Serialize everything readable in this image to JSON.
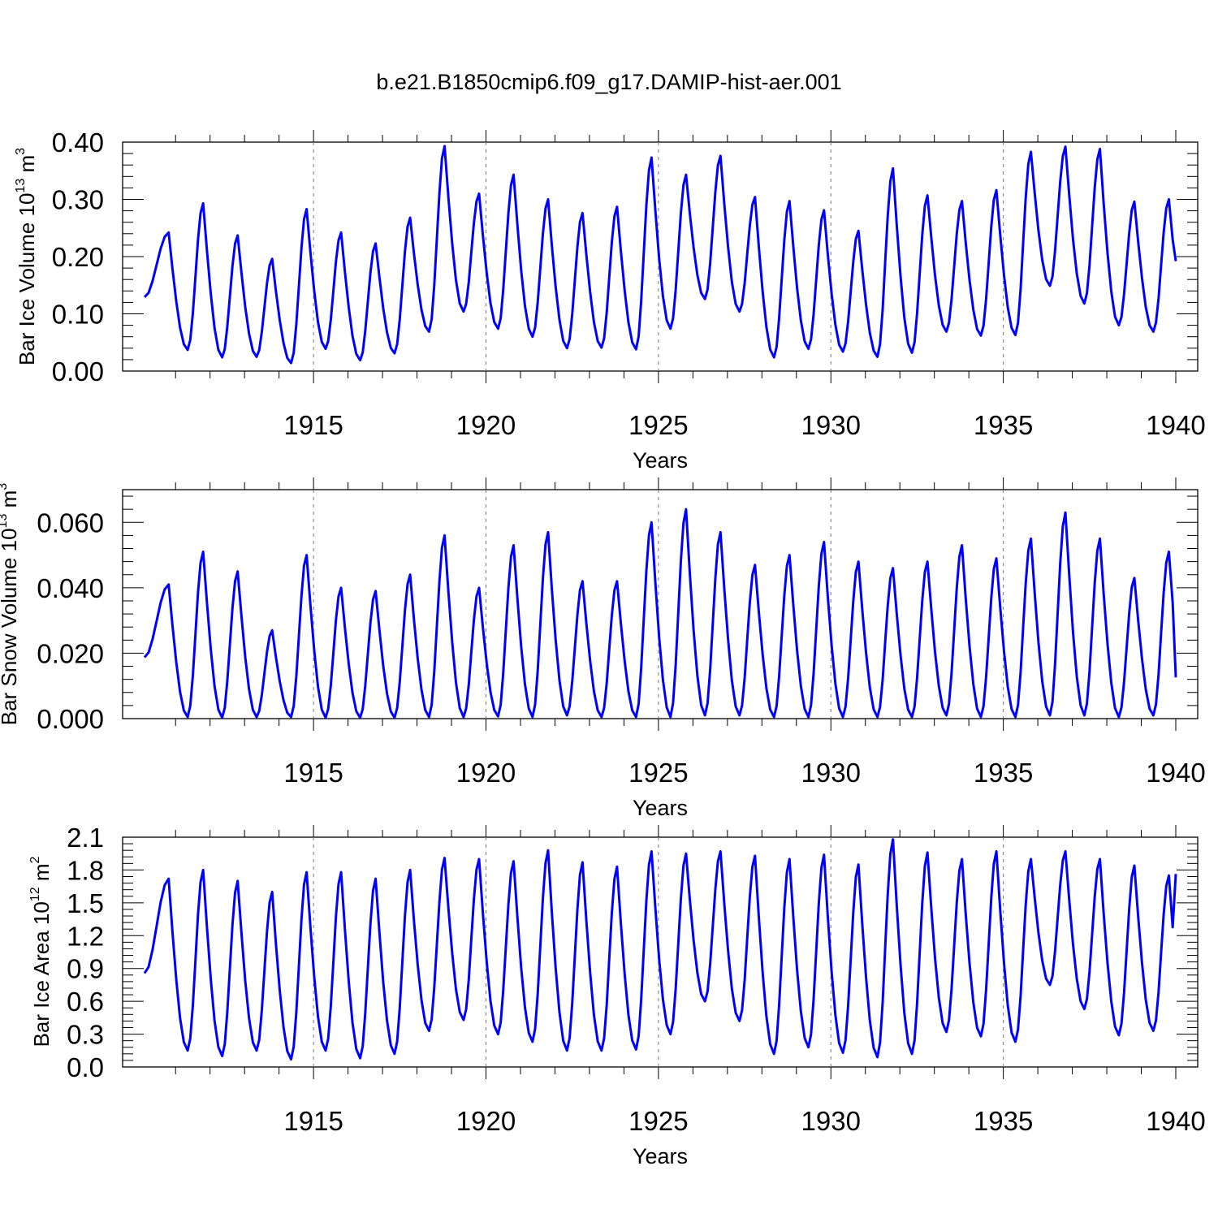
{
  "title": "b.e21.B1850cmip6.f09_g17.DAMIP-hist-aer.001",
  "chart_data": [
    {
      "type": "line",
      "ylabel_main": "Bar Ice Volume 10",
      "ylabel_exp": "13",
      "ylabel_unit": " m",
      "ylabel_unit_exp": "3",
      "xlabel": "Years",
      "xlim": [
        1910.1,
        1940
      ],
      "ylim": [
        0,
        0.4
      ],
      "yticks": [
        0,
        0.1,
        0.2,
        0.3,
        0.4
      ],
      "yticklabels": [
        "0.00",
        "0.10",
        "0.20",
        "0.30",
        "0.40"
      ],
      "xticks": [
        1915,
        1920,
        1925,
        1930,
        1935,
        1940
      ],
      "xticklabels": [
        "1915",
        "1920",
        "1925",
        "1930",
        "1935",
        "1940"
      ],
      "line_color": "#0000ff",
      "series_peaks": [
        0.242,
        0.293,
        0.237,
        0.196,
        0.283,
        0.242,
        0.223,
        0.268,
        0.393,
        0.31,
        0.343,
        0.3,
        0.276,
        0.287,
        0.373,
        0.343,
        0.376,
        0.304,
        0.297,
        0.281,
        0.245,
        0.354,
        0.307,
        0.297,
        0.316,
        0.383,
        0.392,
        0.388,
        0.296,
        0.3
      ],
      "series_troughs": [
        0.037,
        0.024,
        0.025,
        0.014,
        0.039,
        0.019,
        0.031,
        0.069,
        0.104,
        0.074,
        0.06,
        0.04,
        0.041,
        0.038,
        0.074,
        0.126,
        0.104,
        0.024,
        0.039,
        0.034,
        0.025,
        0.032,
        0.069,
        0.062,
        0.063,
        0.149,
        0.118,
        0.08,
        0.069
      ]
    },
    {
      "type": "line",
      "ylabel_main": "Bar Snow Volume 10",
      "ylabel_exp": "13",
      "ylabel_unit": " m",
      "ylabel_unit_exp": "3",
      "xlabel": "Years",
      "xlim": [
        1910.1,
        1940
      ],
      "ylim": [
        0,
        0.07
      ],
      "yticks": [
        0,
        0.02,
        0.04,
        0.06
      ],
      "yticklabels": [
        "0.000",
        "0.020",
        "0.040",
        "0.060"
      ],
      "xticks": [
        1915,
        1920,
        1925,
        1930,
        1935,
        1940
      ],
      "xticklabels": [
        "1915",
        "1920",
        "1925",
        "1930",
        "1935",
        "1940"
      ],
      "line_color": "#0000ff",
      "series_peaks": [
        0.041,
        0.051,
        0.045,
        0.027,
        0.05,
        0.04,
        0.039,
        0.044,
        0.056,
        0.04,
        0.053,
        0.057,
        0.042,
        0.042,
        0.06,
        0.064,
        0.057,
        0.047,
        0.05,
        0.054,
        0.048,
        0.046,
        0.048,
        0.053,
        0.049,
        0.055,
        0.063,
        0.055,
        0.043,
        0.051
      ],
      "series_troughs": [
        0.0005,
        0.0003,
        0.0005,
        0.0005,
        0.0003,
        0.0003,
        0.0003,
        0.0005,
        0.0005,
        0.0007,
        0.0005,
        0.001,
        0.0005,
        0.0005,
        0.0005,
        0.001,
        0.001,
        0.0005,
        0.0005,
        0.0005,
        0.0005,
        0.0005,
        0.001,
        0.0005,
        0.0005,
        0.001,
        0.001,
        0.0005,
        0.001
      ]
    },
    {
      "type": "line",
      "ylabel_main": "Bar Ice Area 10",
      "ylabel_exp": "12",
      "ylabel_unit": " m",
      "ylabel_unit_exp": "2",
      "xlabel": "Years",
      "xlim": [
        1910.1,
        1940
      ],
      "ylim": [
        0,
        2.1
      ],
      "yticks": [
        0,
        0.3,
        0.6,
        0.9,
        1.2,
        1.5,
        1.8,
        2.1
      ],
      "yticklabels": [
        "0.0",
        "0.3",
        "0.6",
        "0.9",
        "1.2",
        "1.5",
        "1.8",
        "2.1"
      ],
      "xticks": [
        1915,
        1920,
        1925,
        1930,
        1935,
        1940
      ],
      "xticklabels": [
        "1915",
        "1920",
        "1925",
        "1930",
        "1935",
        "1940"
      ],
      "line_color": "#0000ff",
      "series_peaks": [
        1.72,
        1.8,
        1.7,
        1.6,
        1.78,
        1.78,
        1.72,
        1.8,
        1.91,
        1.9,
        1.88,
        1.98,
        1.87,
        1.83,
        1.97,
        1.95,
        1.97,
        1.93,
        1.9,
        1.94,
        1.85,
        2.08,
        1.96,
        1.9,
        1.97,
        1.9,
        1.97,
        1.9,
        1.84,
        1.75
      ],
      "series_troughs": [
        0.15,
        0.1,
        0.15,
        0.07,
        0.15,
        0.08,
        0.12,
        0.33,
        0.43,
        0.3,
        0.23,
        0.15,
        0.15,
        0.16,
        0.3,
        0.6,
        0.42,
        0.12,
        0.18,
        0.13,
        0.09,
        0.12,
        0.32,
        0.28,
        0.23,
        0.75,
        0.53,
        0.29,
        0.33
      ]
    }
  ]
}
